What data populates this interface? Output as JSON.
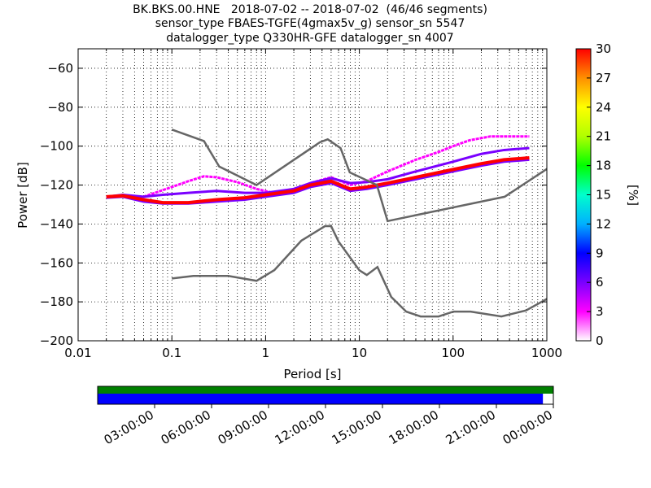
{
  "title_lines": [
    "BK.BKS.00.HNE   2018-07-02 -- 2018-07-02  (46/46 segments)",
    "sensor_type FBAES-TGFE(4gmax5v_g) sensor_sn 5547",
    "datalogger_type Q330HR-GFE datalogger_sn 4007"
  ],
  "chart_data": {
    "type": "heatmap",
    "xlabel": "Period [s]",
    "ylabel": "Power [dB]",
    "x_scale": "log",
    "xlim": [
      0.01,
      1000
    ],
    "ylim": [
      -200,
      -50
    ],
    "x_ticks": [
      0.01,
      0.1,
      1,
      10,
      100,
      1000
    ],
    "x_tick_labels": [
      "0.01",
      "0.1",
      "1",
      "10",
      "100",
      "1000"
    ],
    "y_ticks": [
      -200,
      -180,
      -160,
      -140,
      -120,
      -100,
      -80,
      -60
    ],
    "y_tick_labels": [
      "−200",
      "−180",
      "−160",
      "−140",
      "−120",
      "−100",
      "−80",
      "−60"
    ],
    "grid": "dotted",
    "colorbar": {
      "label": "[%]",
      "range": [
        0,
        30
      ],
      "ticks": [
        0,
        3,
        6,
        9,
        12,
        15,
        18,
        21,
        24,
        27,
        30
      ],
      "tick_labels": [
        "0",
        "3",
        "6",
        "9",
        "12",
        "15",
        "18",
        "21",
        "24",
        "27",
        "30"
      ]
    },
    "noise_models": [
      {
        "role": "high-noise-model",
        "x": [
          0.1,
          0.22,
          0.32,
          0.8,
          3.8,
          4.6,
          6.3,
          7.9,
          15.4,
          20,
          354.8,
          10000
        ],
        "y": [
          -91.5,
          -97.4,
          -110.5,
          -120,
          -98,
          -96.5,
          -101,
          -113.5,
          -120,
          -138.5,
          -126,
          -80
        ]
      },
      {
        "role": "low-noise-model",
        "x": [
          0.1,
          0.17,
          0.4,
          0.8,
          1.24,
          2.4,
          4.3,
          5,
          6,
          10,
          12,
          15.6,
          21.9,
          31.6,
          45,
          70,
          101,
          154,
          328,
          600,
          10000
        ],
        "y": [
          -168,
          -166.7,
          -166.7,
          -169.2,
          -163.7,
          -148.6,
          -141.1,
          -141.1,
          -149,
          -163.8,
          -166.2,
          -162.1,
          -177.5,
          -185,
          -187.5,
          -187.5,
          -185,
          -185,
          -187.5,
          -184.4,
          -151.9
        ]
      }
    ],
    "psd_bands": [
      {
        "role": "dominant",
        "color_pct": 30,
        "x": [
          0.02,
          0.03,
          0.05,
          0.08,
          0.15,
          0.3,
          0.6,
          1,
          2,
          3,
          5,
          8,
          12,
          20,
          40,
          100,
          200,
          350,
          650
        ],
        "y": [
          -126,
          -125.5,
          -127.5,
          -129,
          -129,
          -127.5,
          -126.5,
          -125,
          -123,
          -120,
          -118,
          -122,
          -121,
          -119,
          -116,
          -112,
          -109,
          -107,
          -106
        ]
      },
      {
        "role": "spread-high",
        "color_pct": 6,
        "x": [
          0.02,
          0.03,
          0.05,
          0.08,
          0.15,
          0.3,
          0.6,
          1,
          2,
          3,
          5,
          8,
          12,
          20,
          40,
          100,
          200,
          350,
          650
        ],
        "y": [
          -126,
          -125,
          -126,
          -125,
          -124,
          -123,
          -124,
          -124,
          -122,
          -119,
          -116.5,
          -119,
          -118.5,
          -117,
          -113,
          -108,
          -104,
          -102,
          -101
        ]
      },
      {
        "role": "spread-low",
        "color_pct": 6,
        "x": [
          0.02,
          0.03,
          0.05,
          0.08,
          0.15,
          0.3,
          0.6,
          1,
          2,
          3,
          5,
          8,
          12,
          20,
          40,
          100,
          200,
          350,
          650
        ],
        "y": [
          -126.5,
          -126,
          -128.5,
          -129.5,
          -129.5,
          -128.5,
          -127.5,
          -126,
          -124,
          -121,
          -119,
          -123,
          -122,
          -120,
          -117,
          -113,
          -110,
          -108,
          -107
        ]
      },
      {
        "role": "outlier",
        "color_pct": 2,
        "x": [
          0.05,
          0.1,
          0.15,
          0.22,
          0.3,
          0.5,
          0.8,
          1.2,
          2,
          3,
          5,
          8,
          12,
          20,
          40,
          70,
          100,
          150,
          250,
          650
        ],
        "y": [
          -126,
          -121,
          -118,
          -115.5,
          -116,
          -118.5,
          -122,
          -124,
          -122,
          -119,
          -116,
          -120,
          -118,
          -113,
          -107,
          -103,
          -100,
          -97,
          -95,
          -95
        ]
      }
    ]
  },
  "timeline": {
    "tick_labels": [
      "03:00:00",
      "06:00:00",
      "09:00:00",
      "12:00:00",
      "15:00:00",
      "18:00:00",
      "21:00:00",
      "00:00:00"
    ],
    "tick_hours": [
      3,
      6,
      9,
      12,
      15,
      18,
      21,
      24
    ],
    "data_available_hours": [
      0,
      24
    ],
    "psd_used_hours": [
      0,
      23.45
    ],
    "colors": {
      "data_available": "#008000",
      "psd_used": "#0000ff"
    }
  },
  "colors": {
    "noise_model": "#666666",
    "grid": "#000000",
    "colormap": [
      "#ffffff",
      "#ff00ff",
      "#7a00ff",
      "#0000ff",
      "#00b0ff",
      "#00ffcc",
      "#00ff00",
      "#b0ff00",
      "#ffff00",
      "#ff9000",
      "#ff0000"
    ]
  }
}
